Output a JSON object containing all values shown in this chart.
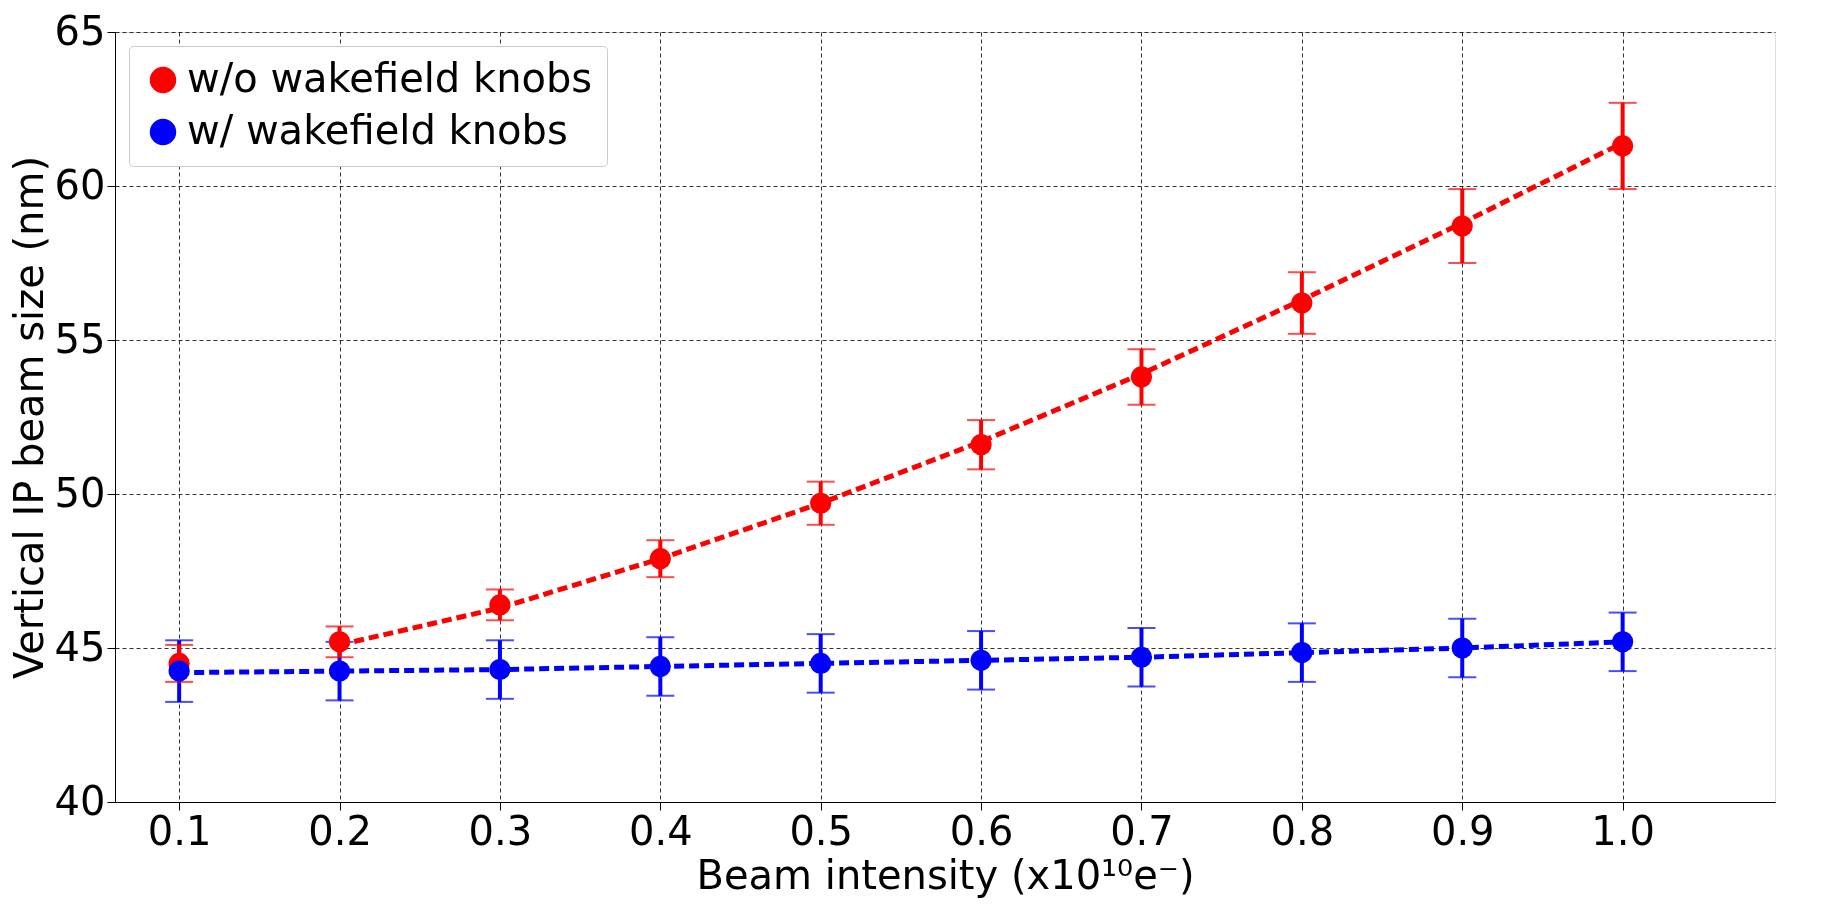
{
  "chart_data": {
    "type": "scatter",
    "xlabel": "Beam intensity (x10¹⁰e⁻)",
    "ylabel": "Vertical IP beam size (nm)",
    "xlim": [
      0.06,
      1.095
    ],
    "xticks": [
      {
        "value": 0.1,
        "label": "0.1"
      },
      {
        "value": 0.2,
        "label": "0.2"
      },
      {
        "value": 0.3,
        "label": "0.3"
      },
      {
        "value": 0.4,
        "label": "0.4"
      },
      {
        "value": 0.5,
        "label": "0.5"
      },
      {
        "value": 0.6,
        "label": "0.6"
      },
      {
        "value": 0.7,
        "label": "0.7"
      },
      {
        "value": 0.8,
        "label": "0.8"
      },
      {
        "value": 0.9,
        "label": "0.9"
      },
      {
        "value": 1.0,
        "label": "1.0"
      }
    ],
    "ylim": [
      40,
      65
    ],
    "yticks": [
      40,
      45,
      50,
      55,
      60,
      65
    ],
    "grid": true,
    "legend": "top left",
    "marker": "circle",
    "x": [
      0.1,
      0.2,
      0.3,
      0.4,
      0.5,
      0.6,
      0.7,
      0.8,
      0.9,
      1.0
    ],
    "series": [
      {
        "type": "line",
        "color": "#ff0000",
        "line_style": "dashed",
        "x": [
          0.2,
          0.3,
          0.4,
          0.5,
          0.6,
          0.7,
          0.8,
          0.9,
          1.0
        ],
        "marker": "none",
        "values": [
          45.1,
          46.3,
          47.9,
          49.7,
          51.7,
          53.9,
          56.3,
          58.8,
          61.4
        ]
      },
      {
        "type": "line",
        "color": "#0000ff",
        "line_style": "dashed",
        "marker": "none",
        "x": [
          0.1,
          0.2,
          0.3,
          0.4,
          0.5,
          0.6,
          0.7,
          0.8,
          0.9,
          1.0
        ],
        "values": [
          44.2,
          44.25,
          44.3,
          44.4,
          44.5,
          44.6,
          44.7,
          44.85,
          45.0,
          45.2
        ]
      },
      {
        "name": "w/o wakefield knobs",
        "color": "#ff0000",
        "values": [
          44.5,
          45.2,
          46.4,
          47.9,
          49.7,
          51.6,
          53.8,
          56.2,
          58.7,
          61.3
        ],
        "errors": [
          0.6,
          0.5,
          0.5,
          0.6,
          0.7,
          0.8,
          0.9,
          1.0,
          1.2,
          1.4
        ]
      },
      {
        "name": "w/ wakefield knobs",
        "color": "#0000ff",
        "values": [
          44.25,
          44.25,
          44.3,
          44.4,
          44.5,
          44.6,
          44.7,
          44.85,
          45.0,
          45.2
        ],
        "errors": [
          1.0,
          0.95,
          0.95,
          0.95,
          0.95,
          0.95,
          0.95,
          0.95,
          0.95,
          0.95
        ]
      }
    ]
  }
}
